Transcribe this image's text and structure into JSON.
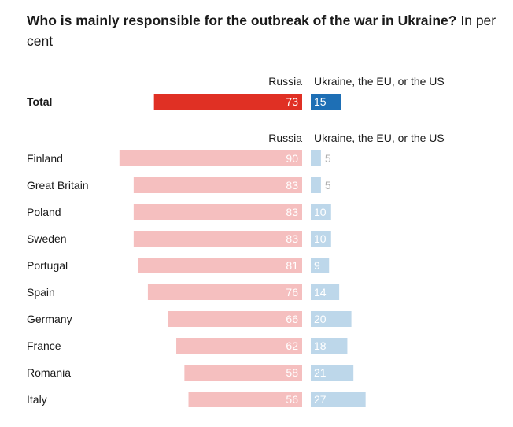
{
  "title": {
    "bold": "Who is mainly responsible for the outbreak of the war in Ukraine?",
    "normal": "In per cent"
  },
  "colors": {
    "total_russia": "#e03024",
    "total_west": "#1e6fb5",
    "russia": "#f5bfbf",
    "west": "#bdd7ea",
    "text": "#1a1a1a",
    "label_on_bar": "#ffffff",
    "label_outside": "#b0b0b0"
  },
  "chart_data": {
    "type": "bar",
    "title": "Who is mainly responsible for the outbreak of the war in Ukraine? In per cent",
    "series_labels": [
      "Russia",
      "Ukraine, the EU, or the US"
    ],
    "total": {
      "label": "Total",
      "russia": 73,
      "west": 15
    },
    "countries": [
      {
        "label": "Finland",
        "russia": 90,
        "west": 5
      },
      {
        "label": "Great Britain",
        "russia": 83,
        "west": 5
      },
      {
        "label": "Poland",
        "russia": 83,
        "west": 10
      },
      {
        "label": "Sweden",
        "russia": 83,
        "west": 10
      },
      {
        "label": "Portugal",
        "russia": 81,
        "west": 9
      },
      {
        "label": "Spain",
        "russia": 76,
        "west": 14
      },
      {
        "label": "Germany",
        "russia": 66,
        "west": 20
      },
      {
        "label": "France",
        "russia": 62,
        "west": 18
      },
      {
        "label": "Romania",
        "russia": 58,
        "west": 21
      },
      {
        "label": "Italy",
        "russia": 56,
        "west": 27
      }
    ]
  }
}
